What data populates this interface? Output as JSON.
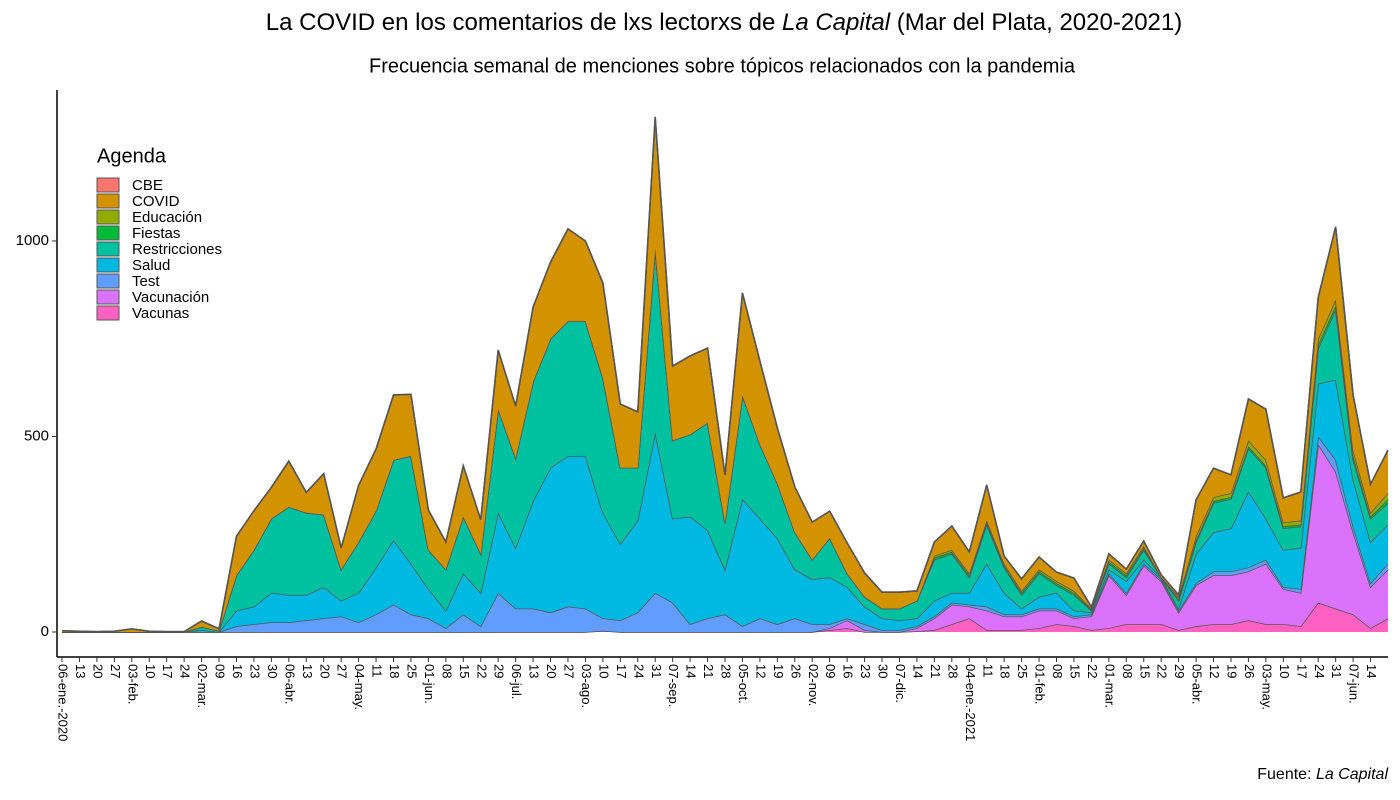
{
  "chart_data": {
    "type": "stacked_area",
    "title": [
      "La COVID en los comentarios de lxs lectorxs de ",
      "La Capital",
      " (Mar del Plata, 2020-2021)"
    ],
    "subtitle": "Frecuencia semanal de menciones sobre tópicos relacionados con la pandemia",
    "caption": [
      "Fuente: ",
      "La Capital"
    ],
    "legend_title": "Agenda",
    "legend_position": "top-left",
    "categories": [
      "06-ene.-2020",
      "13",
      "20",
      "27",
      "03-feb.",
      "10",
      "17",
      "24",
      "02-mar.",
      "09",
      "16",
      "23",
      "30",
      "06-abr.",
      "13",
      "20",
      "27",
      "04-may.",
      "11",
      "18",
      "25",
      "01-jun.",
      "08",
      "15",
      "22",
      "29",
      "06-jul.",
      "13",
      "20",
      "27",
      "03-ago.",
      "10",
      "17",
      "24",
      "31",
      "07-sep.",
      "14",
      "21",
      "28",
      "05-oct.",
      "12",
      "19",
      "26",
      "02-nov.",
      "09",
      "16",
      "23",
      "30",
      "07-dic.",
      "14",
      "21",
      "28",
      "04-ene.-2021",
      "11",
      "18",
      "25",
      "01-feb.",
      "08",
      "15",
      "22",
      "01-mar.",
      "08",
      "15",
      "22",
      "29",
      "05-abr.",
      "12",
      "19",
      "26",
      "03-may.",
      "10",
      "17",
      "24",
      "31",
      "07-jun.",
      "14",
      null
    ],
    "ylim": [
      -64,
      1386
    ],
    "yticks": [
      0,
      500,
      1000
    ],
    "series": [
      {
        "name": "CBE",
        "color": "#F8766D",
        "values": [
          0,
          0,
          0,
          0,
          0,
          0,
          0,
          0,
          0,
          0,
          0,
          0,
          0,
          0,
          0,
          0,
          0,
          0,
          0,
          0,
          0,
          0,
          0,
          0,
          0,
          0,
          0,
          0,
          0,
          0,
          0,
          0,
          0,
          0,
          0,
          0,
          0,
          0,
          0,
          0,
          0,
          0,
          0,
          0,
          0,
          0,
          0,
          0,
          0,
          0,
          0,
          0,
          0,
          0,
          0,
          0,
          0,
          0,
          0,
          0,
          0,
          0,
          0,
          0,
          0,
          0,
          0,
          0,
          0,
          0,
          0,
          0,
          0,
          0,
          0,
          0,
          0
        ]
      },
      {
        "name": "COVID",
        "color": "#D39200",
        "values": [
          3,
          2,
          1,
          2,
          8,
          2,
          1,
          1,
          15,
          5,
          100,
          100,
          80,
          117,
          52,
          105,
          55,
          145,
          158,
          166,
          158,
          102,
          70,
          130,
          87,
          151,
          133,
          191,
          196,
          236,
          205,
          243,
          163,
          143,
          337,
          190,
          201,
          191,
          122,
          262,
          213,
          142,
          116,
          96,
          69,
          78,
          61,
          42,
          42,
          25,
          35,
          61,
          55,
          91,
          19,
          31,
          32,
          23,
          33,
          4,
          15,
          11,
          13,
          6,
          5,
          93,
          74,
          47,
          106,
          130,
          63,
          73,
          106,
          186,
          141,
          73,
          110
        ]
      },
      {
        "name": "Educación",
        "color": "#93AA00",
        "values": [
          0,
          0,
          0,
          0,
          0,
          0,
          0,
          0,
          0,
          0,
          0,
          0,
          0,
          0,
          0,
          0,
          0,
          0,
          0,
          0,
          0,
          0,
          0,
          0,
          0,
          0,
          0,
          0,
          0,
          0,
          0,
          0,
          0,
          0,
          0,
          0,
          0,
          0,
          0,
          0,
          0,
          0,
          0,
          0,
          0,
          0,
          0,
          0,
          0,
          0,
          5,
          5,
          5,
          5,
          5,
          5,
          5,
          5,
          5,
          3,
          5,
          5,
          5,
          0,
          5,
          10,
          10,
          10,
          15,
          15,
          10,
          10,
          15,
          15,
          15,
          10,
          15
        ]
      },
      {
        "name": "Fiestas",
        "color": "#00BA38",
        "values": [
          0,
          0,
          0,
          0,
          0,
          0,
          0,
          0,
          0,
          0,
          0,
          0,
          0,
          0,
          0,
          0,
          0,
          0,
          0,
          0,
          0,
          0,
          0,
          0,
          0,
          0,
          0,
          0,
          0,
          0,
          0,
          0,
          0,
          0,
          0,
          0,
          0,
          0,
          0,
          0,
          0,
          0,
          0,
          0,
          0,
          0,
          0,
          0,
          0,
          0,
          5,
          5,
          5,
          5,
          5,
          5,
          5,
          5,
          5,
          2,
          5,
          5,
          5,
          0,
          5,
          5,
          5,
          5,
          5,
          5,
          5,
          5,
          10,
          10,
          10,
          5,
          10
        ]
      },
      {
        "name": "Restricciones",
        "color": "#00C19F",
        "values": [
          0,
          0,
          0,
          0,
          0,
          0,
          0,
          0,
          8,
          3,
          90,
          145,
          190,
          225,
          210,
          185,
          80,
          130,
          145,
          205,
          275,
          100,
          105,
          145,
          100,
          265,
          230,
          305,
          330,
          345,
          345,
          345,
          195,
          135,
          470,
          200,
          210,
          275,
          120,
          265,
          190,
          140,
          95,
          50,
          100,
          35,
          25,
          25,
          30,
          45,
          105,
          100,
          40,
          100,
          65,
          35,
          60,
          20,
          40,
          5,
          15,
          10,
          25,
          0,
          20,
          30,
          75,
          75,
          110,
          130,
          55,
          55,
          90,
          180,
          50,
          60,
          55
        ]
      },
      {
        "name": "Salud",
        "color": "#00B9E3",
        "values": [
          0,
          0,
          0,
          0,
          0,
          0,
          0,
          0,
          5,
          0,
          40,
          45,
          75,
          70,
          65,
          80,
          40,
          75,
          120,
          165,
          130,
          75,
          45,
          105,
          85,
          205,
          155,
          275,
          370,
          385,
          390,
          270,
          195,
          235,
          410,
          215,
          275,
          225,
          115,
          325,
          255,
          220,
          125,
          115,
          120,
          80,
          45,
          30,
          25,
          20,
          40,
          25,
          30,
          110,
          55,
          15,
          30,
          40,
          15,
          5,
          10,
          30,
          10,
          5,
          5,
          75,
          100,
          110,
          195,
          105,
          95,
          105,
          135,
          205,
          120,
          105,
          100
        ]
      },
      {
        "name": "Test",
        "color": "#619CFF",
        "values": [
          0,
          0,
          0,
          0,
          0,
          0,
          0,
          0,
          0,
          0,
          15,
          20,
          25,
          25,
          30,
          35,
          40,
          25,
          45,
          70,
          45,
          35,
          10,
          45,
          15,
          100,
          60,
          60,
          50,
          65,
          60,
          32,
          30,
          50,
          100,
          75,
          20,
          35,
          45,
          15,
          35,
          20,
          35,
          20,
          10,
          5,
          15,
          5,
          5,
          5,
          5,
          5,
          5,
          10,
          5,
          5,
          5,
          5,
          5,
          5,
          5,
          5,
          5,
          5,
          5,
          5,
          10,
          10,
          10,
          10,
          5,
          10,
          20,
          30,
          15,
          10,
          15
        ]
      },
      {
        "name": "Vacunación",
        "color": "#DB72FB",
        "values": [
          0,
          0,
          0,
          0,
          0,
          0,
          0,
          0,
          0,
          0,
          0,
          0,
          0,
          0,
          0,
          0,
          0,
          0,
          0,
          0,
          0,
          0,
          0,
          0,
          0,
          0,
          0,
          0,
          0,
          0,
          0,
          0,
          0,
          0,
          0,
          0,
          0,
          0,
          0,
          0,
          0,
          0,
          0,
          0,
          5,
          20,
          5,
          0,
          0,
          8,
          30,
          50,
          30,
          50,
          35,
          35,
          45,
          35,
          20,
          35,
          135,
          75,
          150,
          110,
          45,
          105,
          125,
          125,
          125,
          155,
          90,
          85,
          405,
          350,
          210,
          105,
          125
        ]
      },
      {
        "name": "Vacunas",
        "color": "#FF61C3",
        "values": [
          0,
          0,
          0,
          0,
          0,
          0,
          0,
          0,
          0,
          0,
          0,
          0,
          0,
          0,
          0,
          0,
          0,
          0,
          0,
          0,
          0,
          0,
          0,
          0,
          0,
          0,
          0,
          0,
          0,
          0,
          0,
          3,
          0,
          0,
          0,
          0,
          0,
          0,
          0,
          0,
          0,
          0,
          0,
          0,
          5,
          10,
          0,
          0,
          0,
          2,
          5,
          20,
          35,
          5,
          5,
          5,
          10,
          20,
          15,
          5,
          10,
          20,
          20,
          20,
          5,
          15,
          20,
          20,
          30,
          20,
          20,
          15,
          75,
          60,
          45,
          10,
          35
        ]
      }
    ]
  }
}
